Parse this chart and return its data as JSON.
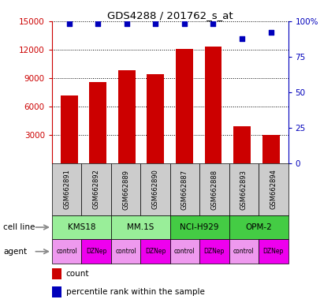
{
  "title": "GDS4288 / 201762_s_at",
  "samples": [
    "GSM662891",
    "GSM662892",
    "GSM662889",
    "GSM662890",
    "GSM662887",
    "GSM662888",
    "GSM662893",
    "GSM662894"
  ],
  "counts": [
    7200,
    8600,
    9800,
    9400,
    12100,
    12300,
    3900,
    3000
  ],
  "percentile_ranks": [
    98,
    98,
    98,
    98,
    98,
    98,
    88,
    92
  ],
  "ylim_left": [
    0,
    15000
  ],
  "ylim_right": [
    0,
    100
  ],
  "yticks_left": [
    3000,
    6000,
    9000,
    12000,
    15000
  ],
  "yticks_right": [
    0,
    25,
    50,
    75,
    100
  ],
  "bar_color": "#cc0000",
  "dot_color": "#0000bb",
  "cell_lines": [
    "KMS18",
    "MM.1S",
    "NCI-H929",
    "OPM-2"
  ],
  "cell_line_colors": [
    "#99ee99",
    "#99ee99",
    "#44cc44",
    "#44cc44"
  ],
  "agent_control_color": "#ee99ee",
  "agent_dznep_color": "#ee00ee",
  "sample_box_color": "#cccccc",
  "left_axis_color": "#cc0000",
  "right_axis_color": "#0000bb",
  "agent_labels": [
    "control",
    "DZNep",
    "control",
    "DZNep",
    "control",
    "DZNep",
    "control",
    "DZNep"
  ]
}
